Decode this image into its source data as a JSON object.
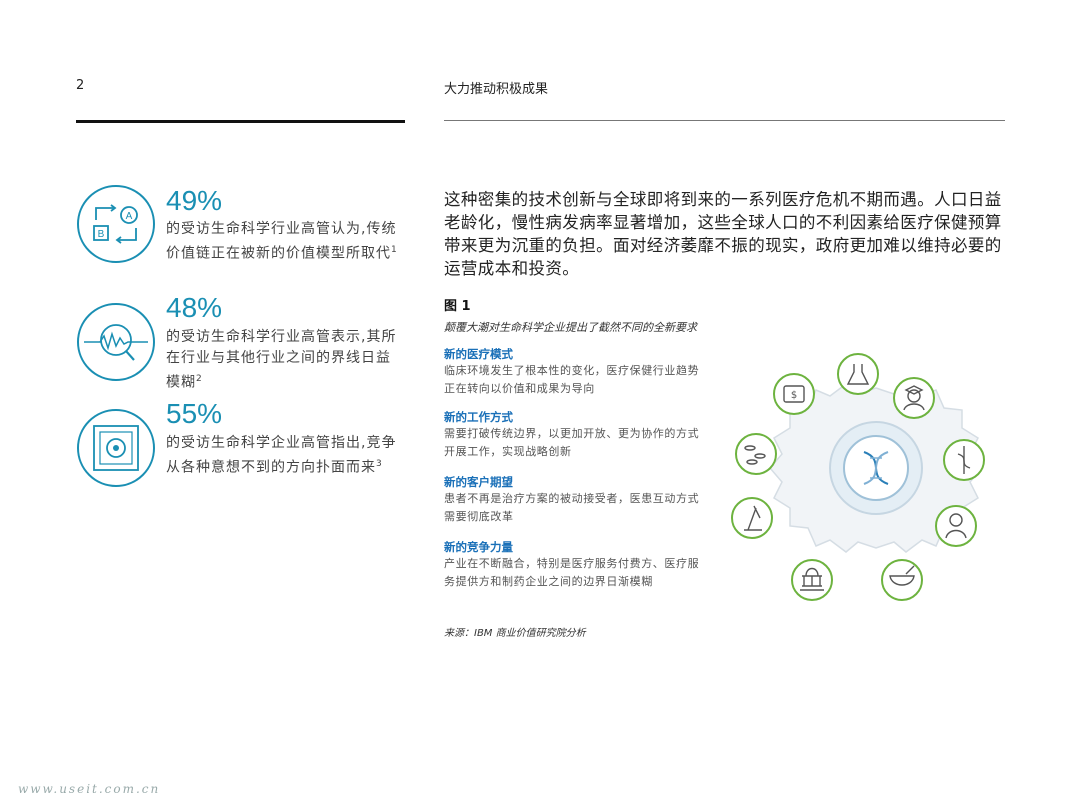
{
  "header": {
    "page_number": "2",
    "title": "大力推动积极成果"
  },
  "stats": [
    {
      "percent": "49%",
      "text": "的受访生命科学行业高管认为,传统价值链正在被新的价值模型所取代",
      "footnote": "1",
      "icon": "ab-swap-icon"
    },
    {
      "percent": "48%",
      "text": "的受访生命科学行业高管表示,其所在行业与其他行业之间的界线日益模糊",
      "footnote": "2",
      "icon": "magnifier-wave-icon"
    },
    {
      "percent": "55%",
      "text": "的受访生命科学企业高管指出,竞争从各种意想不到的方向扑面而来",
      "footnote": "3",
      "icon": "target-square-icon"
    }
  ],
  "intro": "这种密集的技术创新与全球即将到来的一系列医疗危机不期而遇。人口日益老龄化，慢性病发病率显著增加，这些全球人口的不利因素给医疗保健预算带来更为沉重的负担。面对经济萎靡不振的现实，政府更加难以维持必要的运营成本和投资。",
  "figure": {
    "label": "图 1",
    "caption": "颠覆大潮对生命科学企业提出了截然不同的全新要求",
    "sections": [
      {
        "heading": "新的医疗模式",
        "body": "临床环境发生了根本性的变化，医疗保健行业趋势正在转向以价值和成果为导向"
      },
      {
        "heading": "新的工作方式",
        "body": "需要打破传统边界，以更加开放、更为协作的方式开展工作，实现战略创新"
      },
      {
        "heading": "新的客户期望",
        "body": "患者不再是治疗方案的被动接受者，医患互动方式需要彻底改革"
      },
      {
        "heading": "新的竞争力量",
        "body": "产业在不断融合，特别是医疗服务付费方、医疗服务提供方和制药企业之间的边界日渐模糊"
      }
    ],
    "source": "来源：IBM 商业价值研究院分析",
    "diagram_icons": [
      "lab-flask-icon",
      "graduate-icon",
      "caduceus-icon",
      "patient-icon",
      "mortar-pestle-icon",
      "capitol-building-icon",
      "microscope-icon",
      "pills-icon",
      "money-icon",
      "dna-icon"
    ]
  },
  "colors": {
    "accent_blue": "#1a8fb3",
    "heading_blue": "#1a70b8",
    "icon_green": "#6db33f"
  },
  "watermark": "www.useit.com.cn"
}
